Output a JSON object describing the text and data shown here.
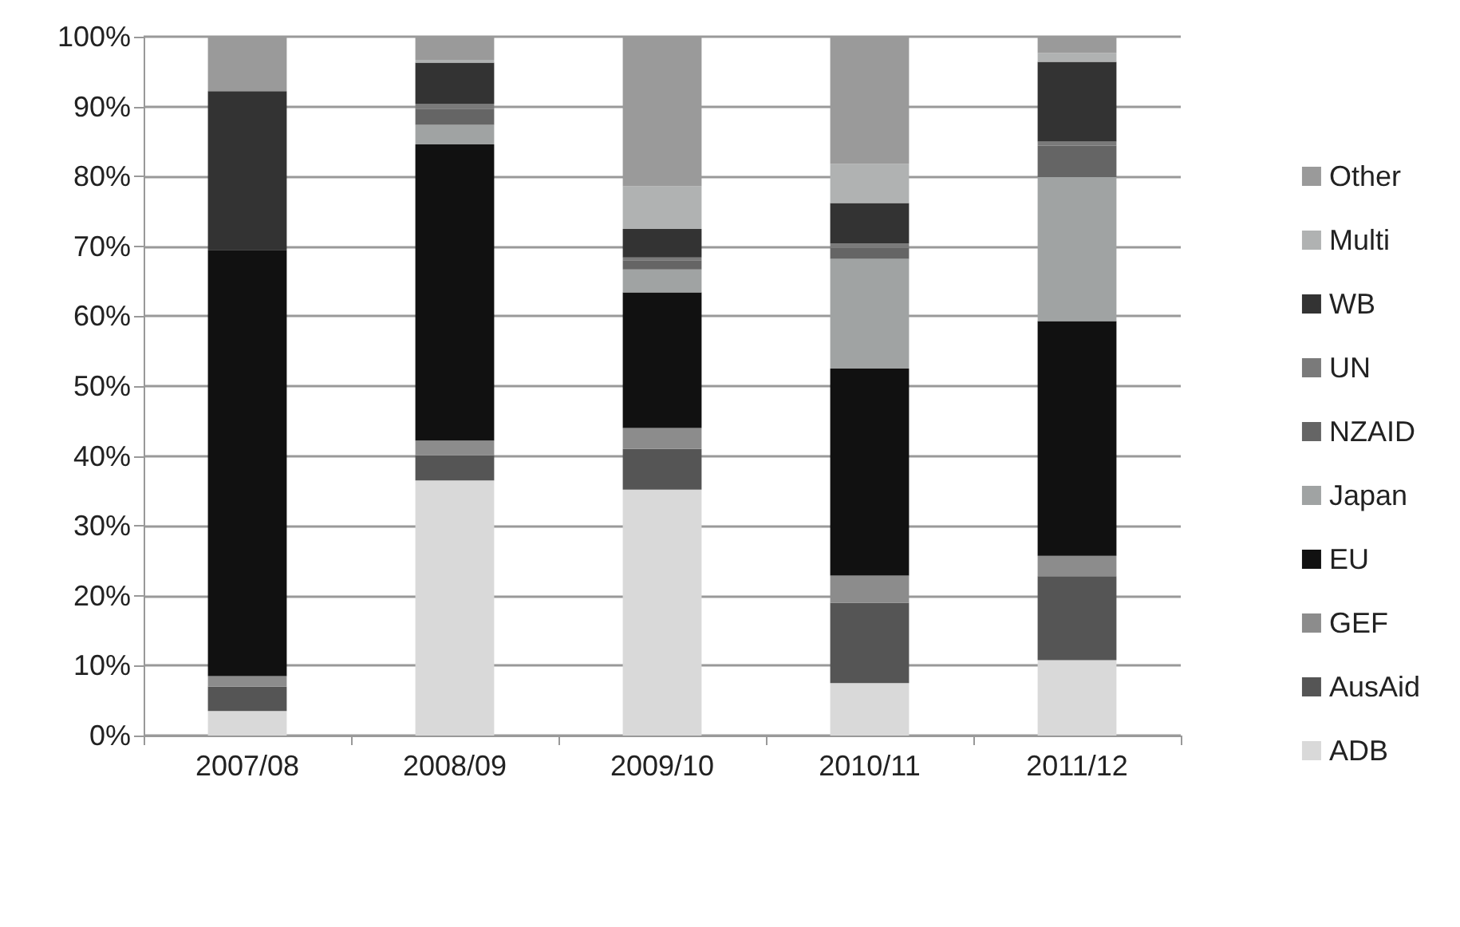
{
  "chart_data": {
    "type": "bar",
    "stacked": true,
    "categories": [
      "2007/08",
      "2008/09",
      "2009/10",
      "2010/11",
      "2011/12"
    ],
    "series": [
      {
        "name": "ADB",
        "color": "#d9d9d9",
        "values": [
          3.5,
          36.5,
          35.2,
          7.5,
          10.8
        ]
      },
      {
        "name": "AusAid",
        "color": "#555555",
        "values": [
          3.5,
          3.6,
          5.8,
          11.5,
          12.0
        ]
      },
      {
        "name": "GEF",
        "color": "#8c8c8c",
        "values": [
          1.5,
          2.1,
          3.0,
          3.9,
          2.9
        ]
      },
      {
        "name": "EU",
        "color": "#111111",
        "values": [
          61.0,
          42.4,
          19.4,
          29.6,
          33.6
        ]
      },
      {
        "name": "Japan",
        "color": "#a0a3a3",
        "values": [
          0,
          2.8,
          3.3,
          15.7,
          20.6
        ]
      },
      {
        "name": "NZAID",
        "color": "#656565",
        "values": [
          0,
          2.3,
          1.3,
          1.6,
          4.5
        ]
      },
      {
        "name": "UN",
        "color": "#7a7a7a",
        "values": [
          0,
          0.7,
          0.4,
          0.6,
          0.6
        ]
      },
      {
        "name": "WB",
        "color": "#333333",
        "values": [
          22.7,
          5.9,
          4.1,
          5.8,
          11.4
        ]
      },
      {
        "name": "Multi",
        "color": "#b0b2b2",
        "values": [
          0,
          0.4,
          6.1,
          5.6,
          1.3
        ]
      },
      {
        "name": "Other",
        "color": "#9a9a9a",
        "values": [
          7.8,
          3.3,
          21.4,
          18.2,
          2.3
        ]
      }
    ],
    "ylim": [
      0,
      100
    ],
    "yticks": [
      {
        "value": 0,
        "label": "0%"
      },
      {
        "value": 10,
        "label": "10%"
      },
      {
        "value": 20,
        "label": "20%"
      },
      {
        "value": 30,
        "label": "30%"
      },
      {
        "value": 40,
        "label": "40%"
      },
      {
        "value": 50,
        "label": "50%"
      },
      {
        "value": 60,
        "label": "60%"
      },
      {
        "value": 70,
        "label": "70%"
      },
      {
        "value": 80,
        "label": "80%"
      },
      {
        "value": 90,
        "label": "90%"
      },
      {
        "value": 100,
        "label": "100%"
      }
    ],
    "grid": "y",
    "legend": "right"
  }
}
